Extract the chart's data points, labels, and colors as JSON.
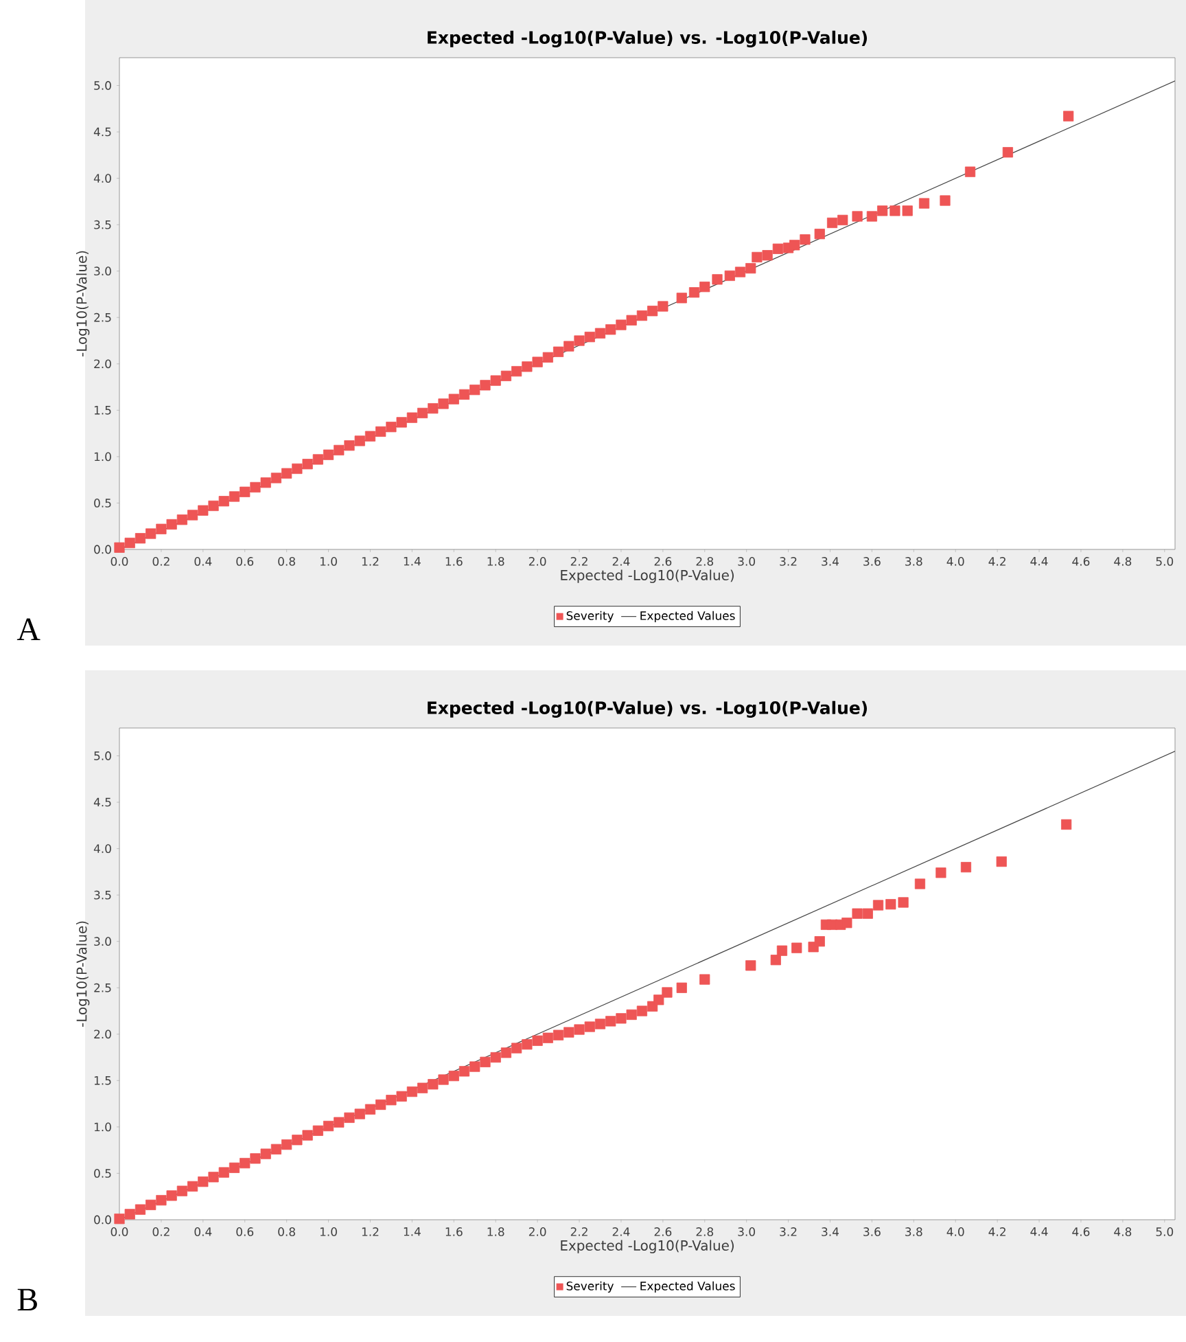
{
  "chart_data": [
    {
      "type": "scatter",
      "title": "Expected -Log10(P-Value) vs. -Log10(P-Value)",
      "xlabel": "Expected -Log10(P-Value)",
      "ylabel": "-Log10(P-Value)",
      "annotations": [
        "A"
      ],
      "legend": "bottom",
      "xlim": [
        0,
        5.05
      ],
      "ylim": [
        0,
        5.3
      ],
      "xticks": [
        {
          "value": 0,
          "label": "0.0"
        },
        0.2,
        0.4,
        0.6,
        0.8,
        {
          "value": 1,
          "label": "1.0"
        },
        1.2,
        1.4,
        1.6,
        1.8,
        {
          "value": 2,
          "label": "2.0"
        },
        2.2,
        2.4,
        2.6,
        2.8,
        {
          "value": 3,
          "label": "3.0"
        },
        3.2,
        3.4,
        3.6,
        3.8,
        {
          "value": 4,
          "label": "4.0"
        },
        4.2,
        4.4,
        4.6,
        4.8,
        {
          "value": 5,
          "label": "5.0"
        }
      ],
      "yticks": [
        {
          "value": 0,
          "label": "0.0"
        },
        0.5,
        {
          "value": 1,
          "label": "1.0"
        },
        1.5,
        {
          "value": 2,
          "label": "2.0"
        },
        2.5,
        {
          "value": 3,
          "label": "3.0"
        },
        3.5,
        {
          "value": 4,
          "label": "4.0"
        },
        4.5,
        {
          "value": 5,
          "label": "5.0"
        }
      ],
      "series": [
        {
          "name": "Severity",
          "marker": "square",
          "color": "#ee5555",
          "x": [
            0,
            0.05,
            0.1,
            0.15,
            0.2,
            0.25,
            0.3,
            0.35,
            0.4,
            0.45,
            0.5,
            0.55,
            0.6,
            0.65,
            0.7,
            0.75,
            0.8,
            0.85,
            0.9,
            0.95,
            1.0,
            1.05,
            1.1,
            1.15,
            1.2,
            1.25,
            1.3,
            1.35,
            1.4,
            1.45,
            1.5,
            1.55,
            1.6,
            1.65,
            1.7,
            1.75,
            1.8,
            1.85,
            1.9,
            1.95,
            2.0,
            2.05,
            2.1,
            2.15,
            2.2,
            2.25,
            2.3,
            2.35,
            2.4,
            2.45,
            2.5,
            2.55,
            2.6,
            2.69,
            2.75,
            2.8,
            2.86,
            2.92,
            2.97,
            3.02,
            3.05,
            3.1,
            3.15,
            3.2,
            3.23,
            3.28,
            3.35,
            3.41,
            3.46,
            3.53,
            3.6,
            3.65,
            3.71,
            3.77,
            3.85,
            3.95,
            4.07,
            4.25,
            4.54
          ],
          "values": [
            0.02,
            0.07,
            0.12,
            0.17,
            0.22,
            0.27,
            0.32,
            0.37,
            0.42,
            0.47,
            0.52,
            0.57,
            0.62,
            0.67,
            0.72,
            0.77,
            0.82,
            0.87,
            0.92,
            0.97,
            1.02,
            1.07,
            1.12,
            1.17,
            1.22,
            1.27,
            1.32,
            1.37,
            1.42,
            1.47,
            1.52,
            1.57,
            1.62,
            1.67,
            1.72,
            1.77,
            1.82,
            1.87,
            1.92,
            1.97,
            2.02,
            2.07,
            2.13,
            2.19,
            2.25,
            2.29,
            2.33,
            2.37,
            2.42,
            2.47,
            2.52,
            2.57,
            2.62,
            2.71,
            2.77,
            2.83,
            2.91,
            2.95,
            2.99,
            3.03,
            3.15,
            3.17,
            3.24,
            3.25,
            3.28,
            3.34,
            3.4,
            3.52,
            3.55,
            3.59,
            3.59,
            3.65,
            3.65,
            3.65,
            3.73,
            3.76,
            4.07,
            4.28,
            4.67
          ]
        },
        {
          "name": "Expected Values",
          "type": "line",
          "color": "#444444",
          "x": [
            0,
            5.05
          ],
          "values": [
            0,
            5.05
          ]
        }
      ]
    },
    {
      "type": "scatter",
      "title": "Expected -Log10(P-Value) vs. -Log10(P-Value)",
      "xlabel": "Expected -Log10(P-Value)",
      "ylabel": "-Log10(P-Value)",
      "annotations": [
        "B"
      ],
      "legend": "bottom",
      "xlim": [
        0,
        5.05
      ],
      "ylim": [
        0,
        5.3
      ],
      "xticks": [
        {
          "value": 0,
          "label": "0.0"
        },
        0.2,
        0.4,
        0.6,
        0.8,
        {
          "value": 1,
          "label": "1.0"
        },
        1.2,
        1.4,
        1.6,
        1.8,
        {
          "value": 2,
          "label": "2.0"
        },
        2.2,
        2.4,
        2.6,
        2.8,
        {
          "value": 3,
          "label": "3.0"
        },
        3.2,
        3.4,
        3.6,
        3.8,
        {
          "value": 4,
          "label": "4.0"
        },
        4.2,
        4.4,
        4.6,
        4.8,
        {
          "value": 5,
          "label": "5.0"
        }
      ],
      "yticks": [
        {
          "value": 0,
          "label": "0.0"
        },
        0.5,
        {
          "value": 1,
          "label": "1.0"
        },
        1.5,
        {
          "value": 2,
          "label": "2.0"
        },
        2.5,
        {
          "value": 3,
          "label": "3.0"
        },
        3.5,
        {
          "value": 4,
          "label": "4.0"
        },
        4.5,
        {
          "value": 5,
          "label": "5.0"
        }
      ],
      "series": [
        {
          "name": "Severity",
          "marker": "square",
          "color": "#ee5555",
          "x": [
            0,
            0.05,
            0.1,
            0.15,
            0.2,
            0.25,
            0.3,
            0.35,
            0.4,
            0.45,
            0.5,
            0.55,
            0.6,
            0.65,
            0.7,
            0.75,
            0.8,
            0.85,
            0.9,
            0.95,
            1.0,
            1.05,
            1.1,
            1.15,
            1.2,
            1.25,
            1.3,
            1.35,
            1.4,
            1.45,
            1.5,
            1.55,
            1.6,
            1.65,
            1.7,
            1.75,
            1.8,
            1.85,
            1.9,
            1.95,
            2.0,
            2.05,
            2.1,
            2.15,
            2.2,
            2.25,
            2.3,
            2.35,
            2.4,
            2.45,
            2.5,
            2.55,
            2.58,
            2.62,
            2.69,
            2.8,
            3.02,
            3.14,
            3.17,
            3.24,
            3.32,
            3.35,
            3.38,
            3.41,
            3.45,
            3.48,
            3.53,
            3.58,
            3.63,
            3.69,
            3.75,
            3.83,
            3.93,
            4.05,
            4.22,
            4.53
          ],
          "values": [
            0.01,
            0.06,
            0.11,
            0.16,
            0.21,
            0.26,
            0.31,
            0.36,
            0.41,
            0.46,
            0.51,
            0.56,
            0.61,
            0.66,
            0.71,
            0.76,
            0.81,
            0.86,
            0.91,
            0.96,
            1.01,
            1.05,
            1.1,
            1.14,
            1.19,
            1.24,
            1.29,
            1.33,
            1.38,
            1.42,
            1.46,
            1.51,
            1.55,
            1.6,
            1.65,
            1.7,
            1.75,
            1.8,
            1.85,
            1.89,
            1.93,
            1.96,
            1.99,
            2.02,
            2.05,
            2.08,
            2.11,
            2.14,
            2.17,
            2.21,
            2.25,
            2.3,
            2.37,
            2.45,
            2.5,
            2.59,
            2.74,
            2.8,
            2.9,
            2.93,
            2.94,
            3.0,
            3.18,
            3.18,
            3.18,
            3.2,
            3.3,
            3.3,
            3.39,
            3.4,
            3.42,
            3.62,
            3.74,
            3.8,
            3.86,
            4.26
          ]
        },
        {
          "name": "Expected Values",
          "type": "line",
          "color": "#444444",
          "x": [
            0,
            5.05
          ],
          "values": [
            0,
            5.05
          ]
        }
      ]
    }
  ]
}
